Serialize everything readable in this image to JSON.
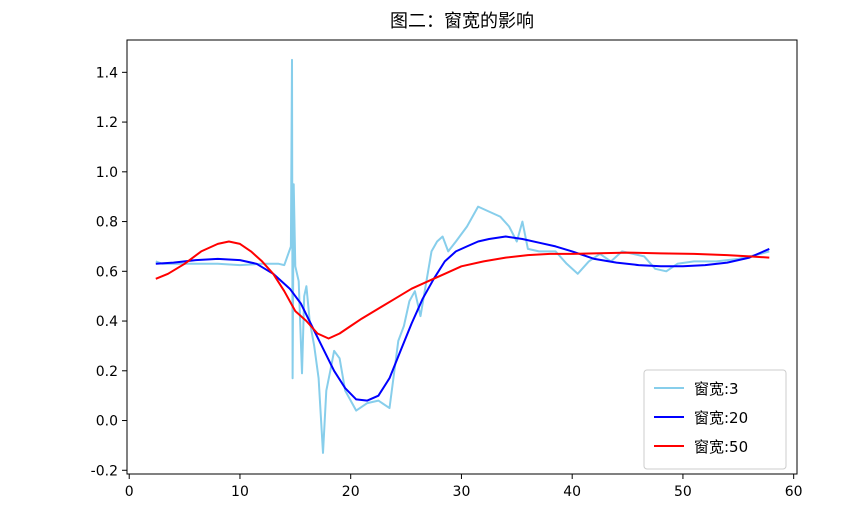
{
  "chart_data": {
    "type": "line",
    "title": "图二：窗宽的影响",
    "xlabel": "",
    "ylabel": "",
    "xlim": [
      -0.2,
      60.3
    ],
    "ylim": [
      -0.215,
      1.53
    ],
    "x_ticks": [
      0,
      10,
      20,
      30,
      40,
      50,
      60
    ],
    "y_ticks": [
      -0.2,
      0.0,
      0.2,
      0.4,
      0.6,
      0.8,
      1.0,
      1.2,
      1.4
    ],
    "x_tick_labels": [
      "0",
      "10",
      "20",
      "30",
      "40",
      "50",
      "60"
    ],
    "y_tick_labels": [
      "-0.2",
      "0.0",
      "0.2",
      "0.4",
      "0.6",
      "0.8",
      "1.0",
      "1.2",
      "1.4"
    ],
    "grid": false,
    "legend_position": "bottom-right",
    "series": [
      {
        "name": "窗宽:3",
        "color": "#87CEEB",
        "points": [
          [
            2.4,
            0.64
          ],
          [
            3,
            0.63
          ],
          [
            5,
            0.63
          ],
          [
            8,
            0.63
          ],
          [
            10,
            0.625
          ],
          [
            12,
            0.63
          ],
          [
            13.5,
            0.63
          ],
          [
            14,
            0.625
          ],
          [
            14.6,
            0.7
          ],
          [
            14.7,
            1.45
          ],
          [
            14.75,
            0.17
          ],
          [
            14.85,
            0.95
          ],
          [
            15,
            0.62
          ],
          [
            15.3,
            0.56
          ],
          [
            15.6,
            0.19
          ],
          [
            15.8,
            0.5
          ],
          [
            16.0,
            0.54
          ],
          [
            16.3,
            0.4
          ],
          [
            16.7,
            0.3
          ],
          [
            17.1,
            0.17
          ],
          [
            17.5,
            -0.13
          ],
          [
            17.8,
            0.12
          ],
          [
            18.2,
            0.21
          ],
          [
            18.5,
            0.28
          ],
          [
            19,
            0.25
          ],
          [
            19.5,
            0.12
          ],
          [
            20,
            0.08
          ],
          [
            20.5,
            0.04
          ],
          [
            21.5,
            0.07
          ],
          [
            22.5,
            0.08
          ],
          [
            23.5,
            0.05
          ],
          [
            24.3,
            0.32
          ],
          [
            24.8,
            0.38
          ],
          [
            25.3,
            0.48
          ],
          [
            25.8,
            0.52
          ],
          [
            26.3,
            0.42
          ],
          [
            26.8,
            0.55
          ],
          [
            27.3,
            0.68
          ],
          [
            27.8,
            0.72
          ],
          [
            28.3,
            0.74
          ],
          [
            28.8,
            0.68
          ],
          [
            29.5,
            0.72
          ],
          [
            30.5,
            0.78
          ],
          [
            31.5,
            0.86
          ],
          [
            32.5,
            0.84
          ],
          [
            33.5,
            0.82
          ],
          [
            34.3,
            0.78
          ],
          [
            35,
            0.72
          ],
          [
            35.5,
            0.8
          ],
          [
            36,
            0.69
          ],
          [
            37,
            0.68
          ],
          [
            38.5,
            0.68
          ],
          [
            39.5,
            0.63
          ],
          [
            40.5,
            0.59
          ],
          [
            41.5,
            0.64
          ],
          [
            42.5,
            0.67
          ],
          [
            43.5,
            0.64
          ],
          [
            44.5,
            0.68
          ],
          [
            45.5,
            0.67
          ],
          [
            46.5,
            0.66
          ],
          [
            47.5,
            0.61
          ],
          [
            48.5,
            0.6
          ],
          [
            49.5,
            0.63
          ],
          [
            51,
            0.64
          ],
          [
            53,
            0.64
          ],
          [
            55,
            0.65
          ],
          [
            57,
            0.67
          ],
          [
            57.8,
            0.68
          ]
        ]
      },
      {
        "name": "窗宽:20",
        "color": "#0000FF",
        "points": [
          [
            2.4,
            0.63
          ],
          [
            4,
            0.635
          ],
          [
            6,
            0.645
          ],
          [
            8,
            0.65
          ],
          [
            10,
            0.645
          ],
          [
            11.5,
            0.63
          ],
          [
            13,
            0.59
          ],
          [
            14.5,
            0.53
          ],
          [
            15.5,
            0.47
          ],
          [
            16.5,
            0.38
          ],
          [
            17.5,
            0.29
          ],
          [
            18.5,
            0.2
          ],
          [
            19.5,
            0.13
          ],
          [
            20.5,
            0.085
          ],
          [
            21.5,
            0.08
          ],
          [
            22.5,
            0.1
          ],
          [
            23.5,
            0.17
          ],
          [
            24.5,
            0.28
          ],
          [
            25.5,
            0.39
          ],
          [
            26.5,
            0.49
          ],
          [
            27.5,
            0.57
          ],
          [
            28.5,
            0.64
          ],
          [
            29.5,
            0.68
          ],
          [
            30.5,
            0.7
          ],
          [
            31.5,
            0.72
          ],
          [
            32.5,
            0.73
          ],
          [
            34,
            0.74
          ],
          [
            35.5,
            0.73
          ],
          [
            37,
            0.715
          ],
          [
            38.5,
            0.7
          ],
          [
            40,
            0.68
          ],
          [
            42,
            0.65
          ],
          [
            44,
            0.635
          ],
          [
            46,
            0.625
          ],
          [
            48,
            0.62
          ],
          [
            50,
            0.62
          ],
          [
            52,
            0.625
          ],
          [
            54,
            0.635
          ],
          [
            56,
            0.655
          ],
          [
            57.8,
            0.69
          ]
        ]
      },
      {
        "name": "窗宽:50",
        "color": "#FF0000",
        "points": [
          [
            2.4,
            0.57
          ],
          [
            3.5,
            0.59
          ],
          [
            5,
            0.63
          ],
          [
            6.5,
            0.68
          ],
          [
            8,
            0.71
          ],
          [
            9,
            0.72
          ],
          [
            10,
            0.71
          ],
          [
            11,
            0.68
          ],
          [
            12,
            0.64
          ],
          [
            13,
            0.59
          ],
          [
            14,
            0.52
          ],
          [
            15,
            0.44
          ],
          [
            16,
            0.4
          ],
          [
            17,
            0.35
          ],
          [
            18,
            0.33
          ],
          [
            19,
            0.35
          ],
          [
            20,
            0.38
          ],
          [
            21,
            0.41
          ],
          [
            22.5,
            0.45
          ],
          [
            24,
            0.49
          ],
          [
            25.5,
            0.53
          ],
          [
            27,
            0.56
          ],
          [
            28.5,
            0.59
          ],
          [
            30,
            0.62
          ],
          [
            32,
            0.64
          ],
          [
            34,
            0.655
          ],
          [
            36,
            0.665
          ],
          [
            38,
            0.67
          ],
          [
            40,
            0.67
          ],
          [
            42,
            0.672
          ],
          [
            45,
            0.675
          ],
          [
            48,
            0.672
          ],
          [
            51,
            0.67
          ],
          [
            54,
            0.665
          ],
          [
            56,
            0.66
          ],
          [
            57.8,
            0.655
          ]
        ]
      }
    ]
  }
}
